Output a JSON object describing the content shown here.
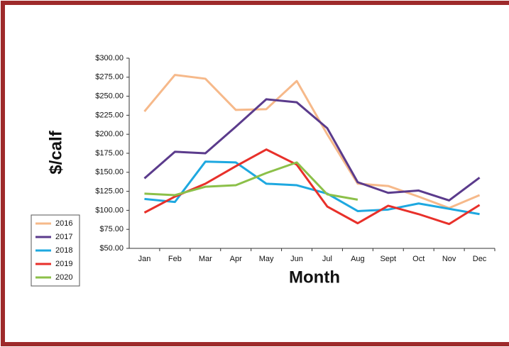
{
  "chart_data": {
    "type": "line",
    "x_label": "Month",
    "y_label": "$/calf",
    "categories": [
      "Jan",
      "Feb",
      "Mar",
      "Apr",
      "May",
      "Jun",
      "Jul",
      "Aug",
      "Sept",
      "Oct",
      "Nov",
      "Dec"
    ],
    "series": [
      {
        "name": "2016",
        "color": "#f6b98a",
        "values": [
          230,
          278,
          273,
          232,
          233,
          270,
          200,
          135,
          132,
          118,
          103,
          120
        ]
      },
      {
        "name": "2017",
        "color": "#5b3b8c",
        "values": [
          142,
          177,
          175,
          210,
          246,
          242,
          208,
          137,
          123,
          126,
          113,
          143
        ]
      },
      {
        "name": "2018",
        "color": "#1ea8e0",
        "values": [
          115,
          111,
          164,
          163,
          135,
          133,
          122,
          99,
          101,
          109,
          102,
          95
        ]
      },
      {
        "name": "2019",
        "color": "#e8302a",
        "values": [
          97,
          118,
          135,
          158,
          180,
          160,
          105,
          83,
          106,
          95,
          82,
          107
        ]
      },
      {
        "name": "2020",
        "color": "#8cc049",
        "values": [
          122,
          120,
          131,
          133,
          149,
          163,
          121,
          114,
          null,
          null,
          null,
          null
        ]
      }
    ],
    "ylim": [
      50,
      300
    ],
    "yticks": [
      {
        "value": 50,
        "label": "$50.00"
      },
      {
        "value": 75,
        "label": "$75.00"
      },
      {
        "value": 100,
        "label": "$100.00"
      },
      {
        "value": 125,
        "label": "$125.00"
      },
      {
        "value": 150,
        "label": "$150.00"
      },
      {
        "value": 175,
        "label": "$175.00"
      },
      {
        "value": 200,
        "label": "$200.00"
      },
      {
        "value": 225,
        "label": "$225.00"
      },
      {
        "value": 250,
        "label": "$250.00"
      },
      {
        "value": 275,
        "label": "$275.00"
      },
      {
        "value": 300,
        "label": "$300.00"
      }
    ],
    "legend": "left"
  }
}
